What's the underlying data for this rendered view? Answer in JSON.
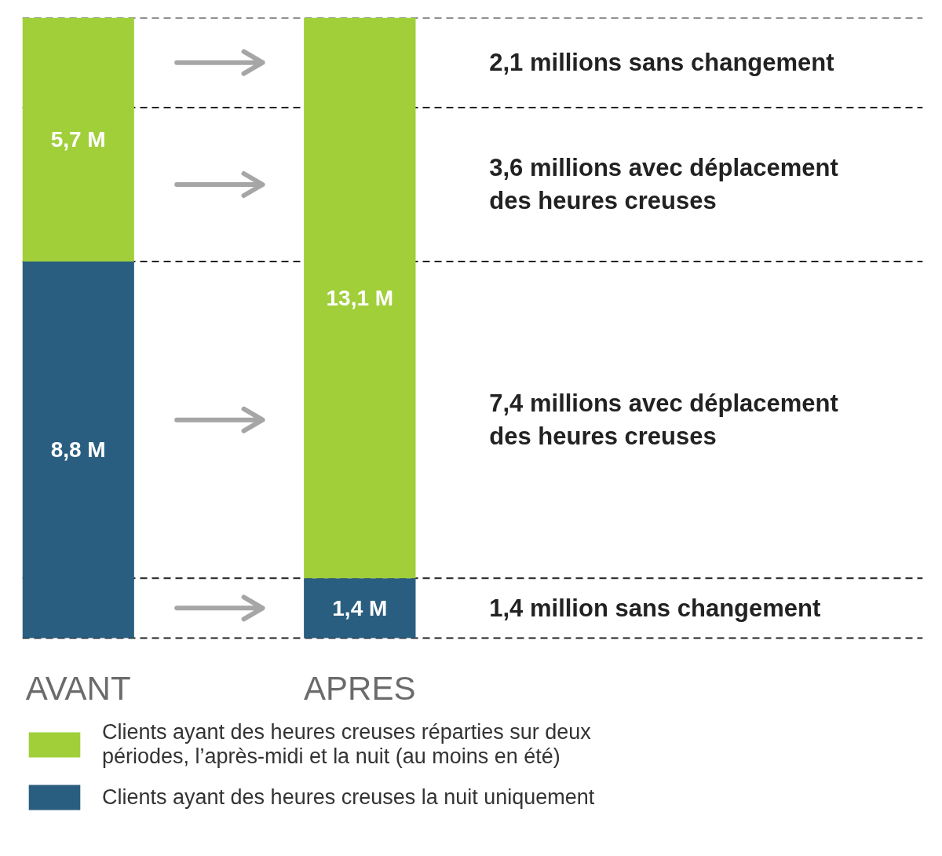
{
  "chart_data": {
    "type": "bar",
    "stacked": true,
    "categories": [
      "AVANT",
      "APRES"
    ],
    "series": [
      {
        "name": "Clients ayant des heures creuses la nuit uniquement",
        "color": "#2a5e80",
        "values": [
          8.8,
          1.4
        ],
        "value_labels": [
          "8,8 M",
          "1,4 M"
        ]
      },
      {
        "name": "Clients ayant des heures creuses réparties sur deux périodes, l’après-midi et la nuit (au moins en été)",
        "color": "#a0cf3a",
        "values": [
          5.7,
          13.1
        ],
        "value_labels": [
          "5,7 M",
          "13,1 M"
        ]
      }
    ],
    "tick_labels": "x",
    "legend": "bottom",
    "ref_lines": [
      {
        "axis": "y",
        "value": 14.5,
        "color": "#222222",
        "line_style": "dashed"
      },
      {
        "axis": "y",
        "value": 12.4,
        "color": "#222222",
        "line_style": "dashed"
      },
      {
        "axis": "y",
        "value": 8.8,
        "color": "#222222",
        "line_style": "dashed"
      },
      {
        "axis": "y",
        "value": 1.4,
        "color": "#222222",
        "line_style": "dashed"
      },
      {
        "axis": "y",
        "value": 0,
        "color": "#222222",
        "line_style": "dashed"
      }
    ],
    "annotations": [
      "2,1 millions sans changement",
      "3,6 millions avec déplacement des heures creuses",
      "7,4 millions avec déplacement des heures creuses",
      "1,4 million sans changement"
    ]
  }
}
